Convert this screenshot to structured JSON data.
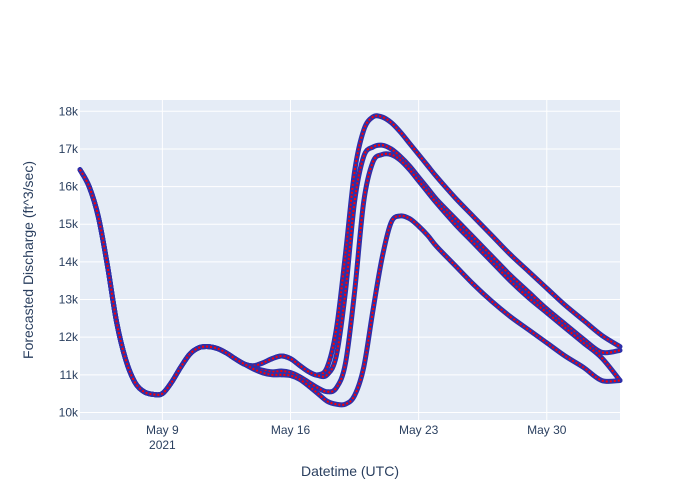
{
  "chart_data": {
    "type": "line",
    "title": "",
    "xlabel": "Datetime (UTC)",
    "ylabel": "Forecasted Discharge (ft^3/sec)",
    "x_ticks": [
      {
        "date": "2021-05-09",
        "label": "May 9",
        "sublabel": "2021"
      },
      {
        "date": "2021-05-16",
        "label": "May 16",
        "sublabel": ""
      },
      {
        "date": "2021-05-23",
        "label": "May 23",
        "sublabel": ""
      },
      {
        "date": "2021-05-30",
        "label": "May 30",
        "sublabel": ""
      }
    ],
    "y_ticks": [
      {
        "value": 10000,
        "label": "10k"
      },
      {
        "value": 11000,
        "label": "11k"
      },
      {
        "value": 12000,
        "label": "12k"
      },
      {
        "value": 13000,
        "label": "13k"
      },
      {
        "value": 14000,
        "label": "14k"
      },
      {
        "value": 15000,
        "label": "15k"
      },
      {
        "value": 16000,
        "label": "16k"
      },
      {
        "value": 17000,
        "label": "17k"
      },
      {
        "value": 18000,
        "label": "18k"
      }
    ],
    "xlim": [
      "2021-05-04T12:00",
      "2021-06-03T00:00"
    ],
    "ylim": [
      9800,
      18300
    ],
    "grid": true,
    "legend": "none",
    "colors": {
      "plot_background": "#e5ecf6",
      "grid": "#ffffff",
      "line_outer": "#2f2fa8",
      "line_inner": "#ff0000"
    },
    "series": [
      {
        "x": [
          "2021-05-04T12:00",
          "2021-05-05T00:00",
          "2021-05-05T12:00",
          "2021-05-06T00:00",
          "2021-05-06T12:00",
          "2021-05-07T00:00",
          "2021-05-07T12:00",
          "2021-05-08T00:00",
          "2021-05-08T12:00",
          "2021-05-09T00:00",
          "2021-05-09T12:00",
          "2021-05-10T00:00",
          "2021-05-10T12:00",
          "2021-05-11T00:00",
          "2021-05-11T12:00",
          "2021-05-12T00:00",
          "2021-05-12T12:00",
          "2021-05-13T00:00",
          "2021-05-13T12:00",
          "2021-05-14T00:00",
          "2021-05-14T12:00",
          "2021-05-15T00:00",
          "2021-05-15T12:00",
          "2021-05-16T00:00",
          "2021-05-16T12:00",
          "2021-05-17T00:00",
          "2021-05-17T12:00",
          "2021-05-18T00:00",
          "2021-05-18T12:00",
          "2021-05-19T00:00",
          "2021-05-19T12:00",
          "2021-05-20T00:00",
          "2021-05-20T12:00",
          "2021-05-21T00:00",
          "2021-05-21T12:00",
          "2021-05-22T00:00",
          "2021-05-22T12:00",
          "2021-05-23T00:00",
          "2021-05-23T12:00",
          "2021-05-24T00:00",
          "2021-05-25T00:00",
          "2021-05-26T00:00",
          "2021-05-27T00:00",
          "2021-05-28T00:00",
          "2021-05-29T00:00",
          "2021-05-30T00:00",
          "2021-05-31T00:00",
          "2021-06-01T00:00",
          "2021-06-02T00:00",
          "2021-06-03T00:00"
        ],
        "y": [
          16450,
          16000,
          15200,
          13900,
          12400,
          11400,
          10800,
          10550,
          10480,
          10500,
          10800,
          11200,
          11550,
          11720,
          11750,
          11700,
          11580,
          11420,
          11280,
          11240,
          11320,
          11430,
          11500,
          11430,
          11250,
          11080,
          11000,
          11200,
          12200,
          14200,
          16400,
          17500,
          17850,
          17850,
          17700,
          17450,
          17150,
          16850,
          16550,
          16250,
          15700,
          15200,
          14700,
          14200,
          13750,
          13300,
          12850,
          12450,
          12050,
          11750
        ]
      },
      {
        "x": [
          "2021-05-04T12:00",
          "2021-05-05T00:00",
          "2021-05-05T12:00",
          "2021-05-06T00:00",
          "2021-05-06T12:00",
          "2021-05-07T00:00",
          "2021-05-07T12:00",
          "2021-05-08T00:00",
          "2021-05-08T12:00",
          "2021-05-09T00:00",
          "2021-05-09T12:00",
          "2021-05-10T00:00",
          "2021-05-10T12:00",
          "2021-05-11T00:00",
          "2021-05-11T12:00",
          "2021-05-12T00:00",
          "2021-05-12T12:00",
          "2021-05-13T00:00",
          "2021-05-13T12:00",
          "2021-05-14T00:00",
          "2021-05-14T12:00",
          "2021-05-15T00:00",
          "2021-05-15T12:00",
          "2021-05-16T00:00",
          "2021-05-16T12:00",
          "2021-05-17T00:00",
          "2021-05-17T12:00",
          "2021-05-18T00:00",
          "2021-05-18T12:00",
          "2021-05-19T00:00",
          "2021-05-19T12:00",
          "2021-05-20T00:00",
          "2021-05-20T12:00",
          "2021-05-21T00:00",
          "2021-05-21T12:00",
          "2021-05-22T00:00",
          "2021-05-22T12:00",
          "2021-05-23T00:00",
          "2021-05-23T12:00",
          "2021-05-24T00:00",
          "2021-05-25T00:00",
          "2021-05-26T00:00",
          "2021-05-27T00:00",
          "2021-05-28T00:00",
          "2021-05-29T00:00",
          "2021-05-30T00:00",
          "2021-05-31T00:00",
          "2021-06-01T00:00",
          "2021-06-02T00:00",
          "2021-06-03T00:00"
        ],
        "y": [
          16450,
          16000,
          15200,
          13900,
          12400,
          11400,
          10800,
          10550,
          10480,
          10500,
          10800,
          11200,
          11550,
          11720,
          11750,
          11700,
          11580,
          11420,
          11280,
          11240,
          11320,
          11430,
          11500,
          11430,
          11250,
          11080,
          10980,
          11000,
          11500,
          13200,
          15600,
          16800,
          17050,
          17100,
          17000,
          16800,
          16550,
          16250,
          15950,
          15650,
          15150,
          14650,
          14150,
          13650,
          13200,
          12750,
          12350,
          11950,
          11600,
          11650
        ]
      },
      {
        "x": [
          "2021-05-04T12:00",
          "2021-05-05T00:00",
          "2021-05-05T12:00",
          "2021-05-06T00:00",
          "2021-05-06T12:00",
          "2021-05-07T00:00",
          "2021-05-07T12:00",
          "2021-05-08T00:00",
          "2021-05-08T12:00",
          "2021-05-09T00:00",
          "2021-05-09T12:00",
          "2021-05-10T00:00",
          "2021-05-10T12:00",
          "2021-05-11T00:00",
          "2021-05-11T12:00",
          "2021-05-12T00:00",
          "2021-05-12T12:00",
          "2021-05-13T00:00",
          "2021-05-13T12:00",
          "2021-05-14T00:00",
          "2021-05-14T12:00",
          "2021-05-15T00:00",
          "2021-05-15T12:00",
          "2021-05-16T00:00",
          "2021-05-16T12:00",
          "2021-05-17T00:00",
          "2021-05-17T12:00",
          "2021-05-18T00:00",
          "2021-05-18T12:00",
          "2021-05-19T00:00",
          "2021-05-19T12:00",
          "2021-05-20T00:00",
          "2021-05-20T12:00",
          "2021-05-21T00:00",
          "2021-05-21T12:00",
          "2021-05-22T00:00",
          "2021-05-22T12:00",
          "2021-05-23T00:00",
          "2021-05-23T12:00",
          "2021-05-24T00:00",
          "2021-05-25T00:00",
          "2021-05-26T00:00",
          "2021-05-27T00:00",
          "2021-05-28T00:00",
          "2021-05-29T00:00",
          "2021-05-30T00:00",
          "2021-05-31T00:00",
          "2021-06-01T00:00",
          "2021-06-02T00:00",
          "2021-06-03T00:00"
        ],
        "y": [
          16450,
          16000,
          15200,
          13900,
          12400,
          11400,
          10800,
          10550,
          10480,
          10500,
          10800,
          11200,
          11550,
          11720,
          11750,
          11700,
          11580,
          11420,
          11280,
          11180,
          11120,
          11080,
          11100,
          11060,
          10950,
          10800,
          10650,
          10550,
          10650,
          11300,
          13200,
          15600,
          16650,
          16850,
          16850,
          16700,
          16450,
          16150,
          15850,
          15550,
          15000,
          14500,
          14000,
          13500,
          13050,
          12650,
          12250,
          11850,
          11450,
          10850
        ]
      },
      {
        "x": [
          "2021-05-04T12:00",
          "2021-05-05T00:00",
          "2021-05-05T12:00",
          "2021-05-06T00:00",
          "2021-05-06T12:00",
          "2021-05-07T00:00",
          "2021-05-07T12:00",
          "2021-05-08T00:00",
          "2021-05-08T12:00",
          "2021-05-09T00:00",
          "2021-05-09T12:00",
          "2021-05-10T00:00",
          "2021-05-10T12:00",
          "2021-05-11T00:00",
          "2021-05-11T12:00",
          "2021-05-12T00:00",
          "2021-05-12T12:00",
          "2021-05-13T00:00",
          "2021-05-13T12:00",
          "2021-05-14T00:00",
          "2021-05-14T12:00",
          "2021-05-15T00:00",
          "2021-05-15T12:00",
          "2021-05-16T00:00",
          "2021-05-16T12:00",
          "2021-05-17T00:00",
          "2021-05-17T12:00",
          "2021-05-18T00:00",
          "2021-05-18T12:00",
          "2021-05-19T00:00",
          "2021-05-19T12:00",
          "2021-05-20T00:00",
          "2021-05-20T12:00",
          "2021-05-21T00:00",
          "2021-05-21T12:00",
          "2021-05-22T00:00",
          "2021-05-22T12:00",
          "2021-05-23T00:00",
          "2021-05-23T12:00",
          "2021-05-24T00:00",
          "2021-05-25T00:00",
          "2021-05-26T00:00",
          "2021-05-27T00:00",
          "2021-05-28T00:00",
          "2021-05-29T00:00",
          "2021-05-30T00:00",
          "2021-05-31T00:00",
          "2021-06-01T00:00",
          "2021-06-02T00:00",
          "2021-06-03T00:00"
        ],
        "y": [
          16450,
          16000,
          15200,
          13900,
          12400,
          11400,
          10800,
          10550,
          10480,
          10500,
          10800,
          11200,
          11550,
          11720,
          11750,
          11700,
          11580,
          11420,
          11280,
          11150,
          11050,
          11000,
          11000,
          10980,
          10880,
          10700,
          10500,
          10300,
          10220,
          10220,
          10450,
          11200,
          12700,
          14100,
          15050,
          15220,
          15150,
          14950,
          14700,
          14400,
          13900,
          13400,
          12950,
          12550,
          12200,
          11850,
          11500,
          11200,
          10850,
          10850
        ]
      }
    ]
  }
}
